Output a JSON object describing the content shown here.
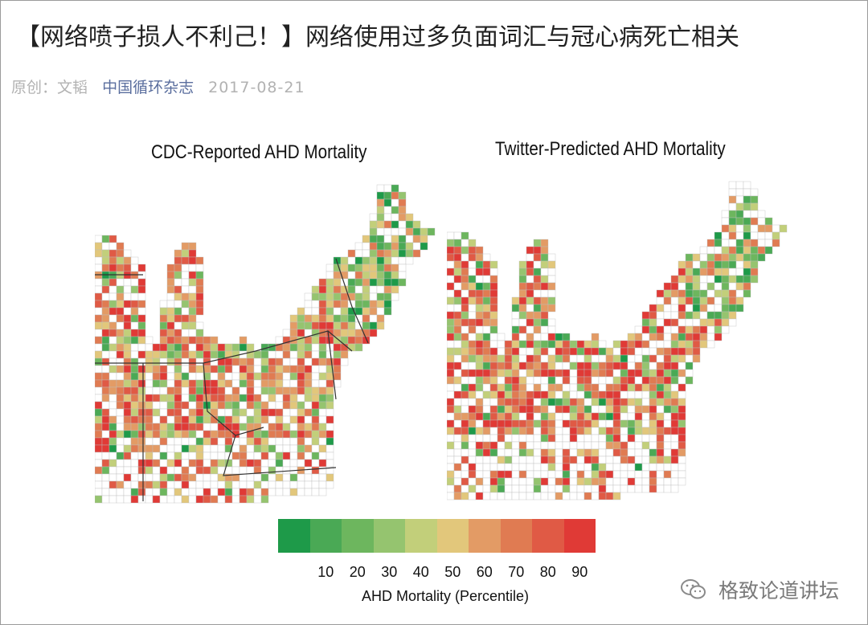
{
  "article": {
    "title": "【网络喷子损人不利己！】网络使用过多负面词汇与冠心病死亡相关",
    "author": "原创：文韬",
    "source": "中国循环杂志",
    "date": "2017-08-21"
  },
  "maps": {
    "left_title": "CDC-Reported AHD Mortality",
    "right_title": "Twitter-Predicted AHD Mortality"
  },
  "legend": {
    "label": "AHD Mortality (Percentile)",
    "ticks": [
      "10",
      "20",
      "30",
      "40",
      "50",
      "60",
      "70",
      "80",
      "90"
    ],
    "colors": [
      "#1e9a49",
      "#4aa955",
      "#6db65e",
      "#95c46f",
      "#c2cf7a",
      "#e2c77b",
      "#e39b65",
      "#e07b52",
      "#e05a45",
      "#e03a36"
    ]
  },
  "watermark": {
    "icon": "wechat-icon",
    "text": "格致论道讲坛"
  }
}
